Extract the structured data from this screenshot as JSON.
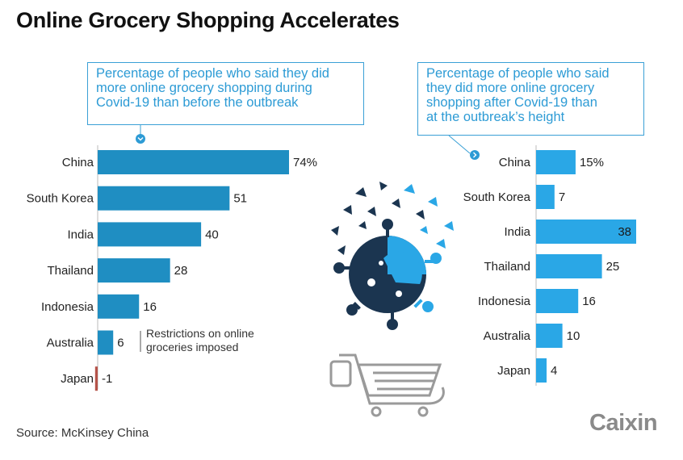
{
  "title": "Online Grocery Shopping Accelerates",
  "source": "Source: McKinsey China",
  "logo_text": "Caixin",
  "colors": {
    "left_bar": "#1f8ec2",
    "right_bar": "#2aa7e6",
    "negative_bar": "#b5534a",
    "callout": "#2d9bd5",
    "virus_dark": "#1b3550",
    "virus_light": "#2aa7e6"
  },
  "icons": [
    "virus-icon",
    "shopping-cart-icon",
    "chevron-down-icon",
    "chevron-right-icon"
  ],
  "chart_data": [
    {
      "type": "bar",
      "orientation": "horizontal",
      "title_lines": [
        "Percentage of people who said they did",
        "more online grocery shopping during",
        "Covid-19 than before the outbreak"
      ],
      "categories": [
        "China",
        "South Korea",
        "India",
        "Thailand",
        "Indonesia",
        "Australia",
        "Japan"
      ],
      "values": [
        74,
        51,
        40,
        28,
        16,
        6,
        -1
      ],
      "value_labels": [
        "74%",
        "51",
        "40",
        "28",
        "16",
        "6",
        "-1"
      ],
      "annotation_lines": [
        "Restrictions on online",
        "groceries imposed"
      ],
      "annotation_category": "Australia"
    },
    {
      "type": "bar",
      "orientation": "horizontal",
      "title_lines": [
        "Percentage of people who said",
        "they did more online grocery",
        "shopping after Covid-19 than",
        "at the outbreak’s height"
      ],
      "categories": [
        "China",
        "South Korea",
        "India",
        "Thailand",
        "Indonesia",
        "Australia",
        "Japan"
      ],
      "values": [
        15,
        7,
        38,
        25,
        16,
        10,
        4
      ],
      "value_labels": [
        "15%",
        "7",
        "38",
        "25",
        "16",
        "10",
        "4"
      ]
    }
  ]
}
